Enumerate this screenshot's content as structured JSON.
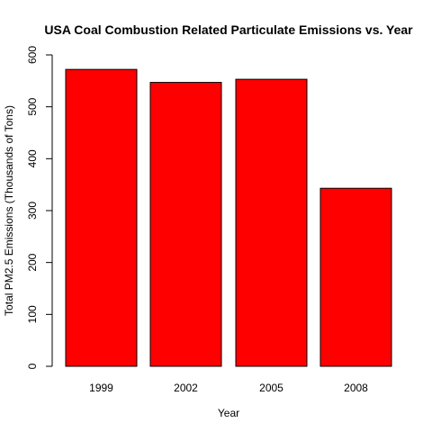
{
  "chart_data": {
    "type": "bar",
    "title": "USA Coal Combustion Related Particulate Emissions vs. Year",
    "xlabel": "Year",
    "ylabel": "Total PM2.5 Emissions (Thousands of Tons)",
    "categories": [
      "1999",
      "2002",
      "2005",
      "2008"
    ],
    "values": [
      572,
      547,
      553,
      343
    ],
    "ylim": [
      0,
      600
    ],
    "yticks": [
      "0",
      "100",
      "200",
      "300",
      "400",
      "500",
      "600"
    ],
    "bar_color": "#ff0000",
    "grid": false
  }
}
